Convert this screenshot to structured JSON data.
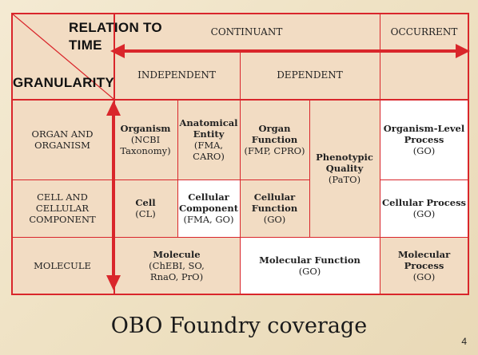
{
  "axes": {
    "relation_line1": "RELATION TO",
    "relation_line2": "TIME",
    "granularity": "GRANULARITY"
  },
  "columns": {
    "continuant": "CONTINUANT",
    "occurrent": "OCCURRENT",
    "independent": "INDEPENDENT",
    "dependent": "DEPENDENT"
  },
  "rows": {
    "organ": [
      "ORGAN AND",
      "ORGANISM"
    ],
    "cell": [
      "CELL AND",
      "CELLULAR",
      "COMPONENT"
    ],
    "molecule": [
      "MOLECULE"
    ]
  },
  "cells": {
    "organism": {
      "name": "Organism",
      "source": [
        "(NCBI",
        "Taxonomy)"
      ]
    },
    "anatomical": {
      "name": [
        "Anatomical",
        "Entity"
      ],
      "source": [
        "(FMA,",
        "CARO)"
      ]
    },
    "organ_function": {
      "name": [
        "Organ",
        "Function"
      ],
      "source": [
        "(FMP, CPRO)"
      ]
    },
    "phenotypic": {
      "name": [
        "Phenotypic",
        "Quality"
      ],
      "source": [
        "(PaTO)"
      ]
    },
    "organism_process": {
      "name": [
        "Organism-Level",
        "Process"
      ],
      "source": [
        "(GO)"
      ]
    },
    "cell": {
      "name": "Cell",
      "source": [
        "(CL)"
      ]
    },
    "cellular_component": {
      "name": [
        "Cellular",
        "Component"
      ],
      "source": [
        "(FMA, GO)"
      ]
    },
    "cellular_function": {
      "name": [
        "Cellular",
        "Function"
      ],
      "source": [
        "(GO)"
      ]
    },
    "cellular_process": {
      "name": [
        "Cellular Process"
      ],
      "source": [
        "(GO)"
      ]
    },
    "molecule": {
      "name": "Molecule",
      "source": [
        "(ChEBI, SO,",
        "RnaO, PrO)"
      ]
    },
    "molecular_function": {
      "name": [
        "Molecular Function"
      ],
      "source": [
        "(GO)"
      ]
    },
    "molecular_process": {
      "name": [
        "Molecular",
        "Process"
      ],
      "source": [
        "(GO)"
      ]
    }
  },
  "title": "OBO Foundry coverage",
  "page_number": "4",
  "colors": {
    "grid_red": "#d9262b",
    "cell_beige": "#f2dcc3",
    "cell_white": "#ffffff"
  }
}
